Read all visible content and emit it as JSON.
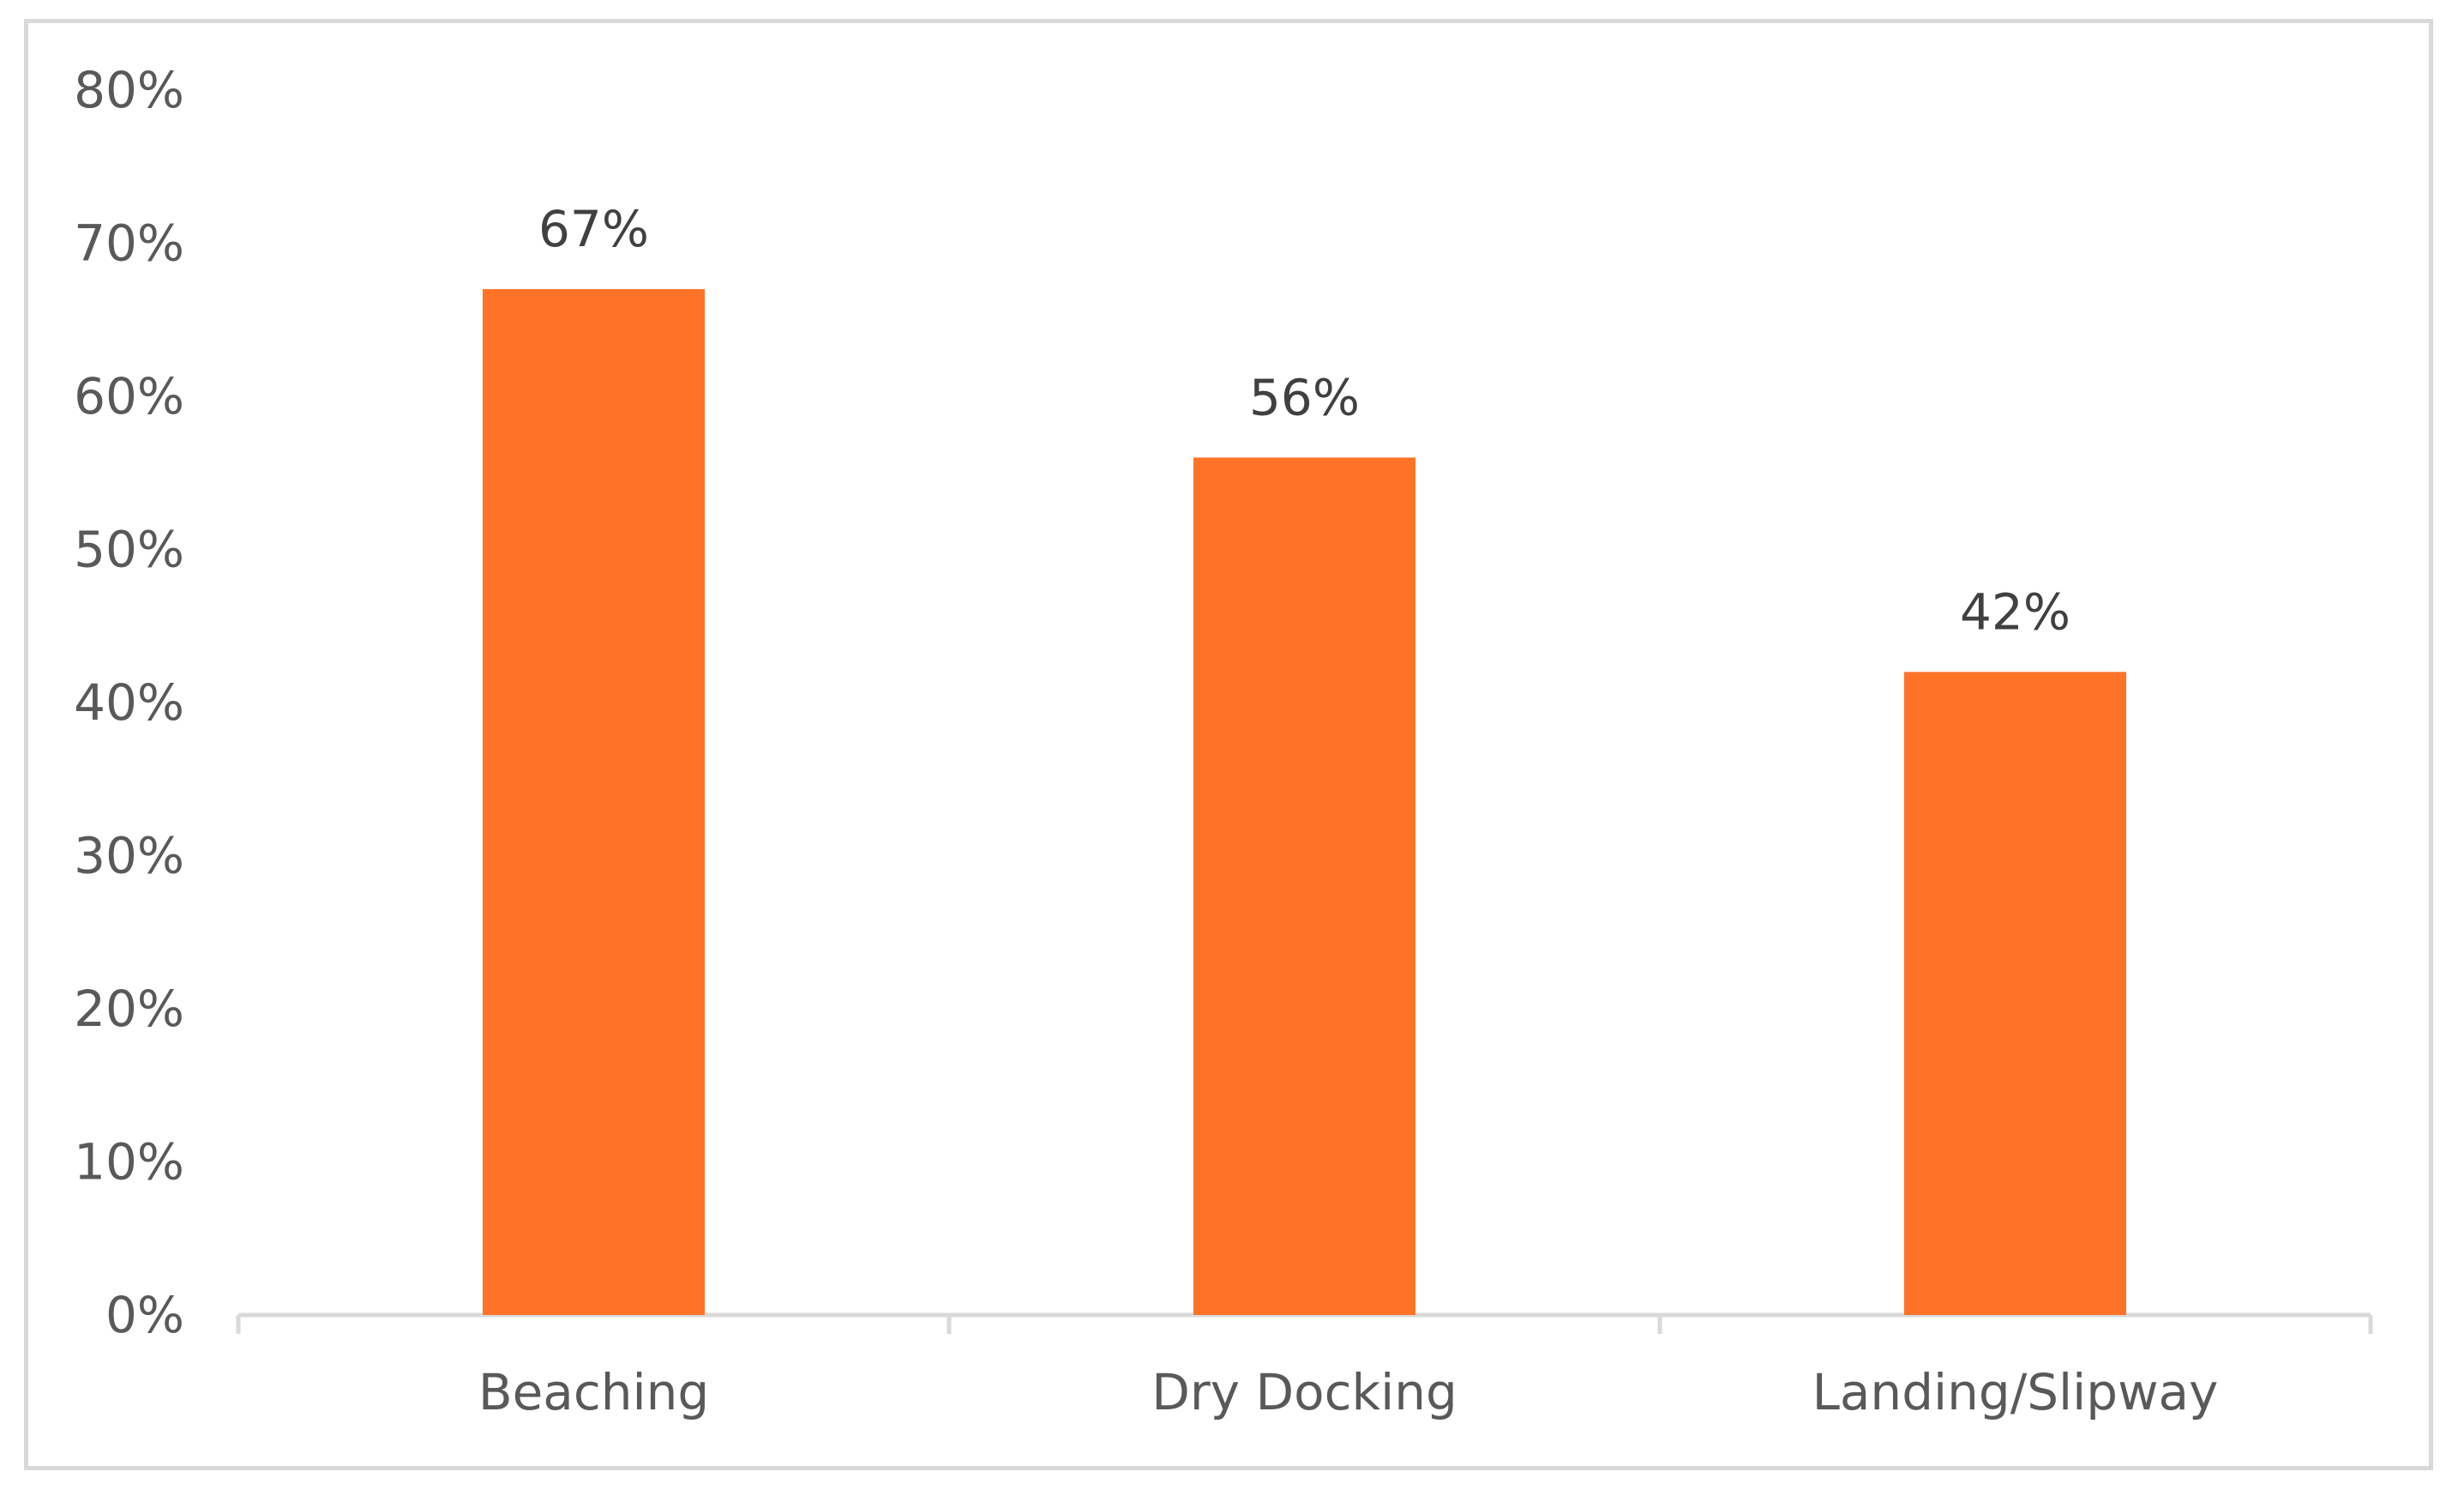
{
  "chart_data": {
    "type": "bar",
    "categories": [
      "Beaching",
      "Dry Docking",
      "Landing/Slipway"
    ],
    "values": [
      67,
      56,
      42
    ],
    "data_labels": [
      "67%",
      "56%",
      "42%"
    ],
    "title": "",
    "xlabel": "",
    "ylabel": "",
    "ylim": [
      0,
      80
    ],
    "yticks": [
      0,
      10,
      20,
      30,
      40,
      50,
      60,
      70,
      80
    ],
    "ytick_labels": [
      "0%",
      "10%",
      "20%",
      "30%",
      "40%",
      "50%",
      "60%",
      "70%",
      "80%"
    ],
    "grid": false,
    "legend": "none",
    "colors": {
      "bar": "#FF7328",
      "axis": "#d9d9d9",
      "tick_text": "#595959",
      "label_text": "#404040"
    }
  }
}
